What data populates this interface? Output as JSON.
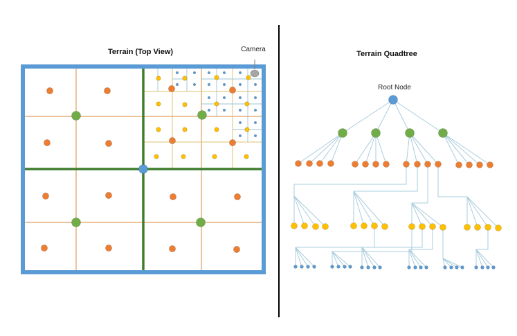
{
  "left": {
    "title": "Terrain (Top View)",
    "camera_label": "Camera"
  },
  "right": {
    "title": "Terrain Quadtree",
    "root_label": "Root Node"
  },
  "colors": {
    "border_blue": "#5B9BD5",
    "level1_line": "#3E7D2E",
    "level2_line": "#E0A060",
    "level3_line": "#E2C070",
    "level4_line": "#9DC3D6",
    "root_node": "#5B9BD5",
    "level1_node": "#70AD47",
    "level2_node": "#ED7D31",
    "level3_node": "#FFC000",
    "level4_node": "#5B9BD5",
    "camera": "#A6A6A6",
    "tree_edge": "#A9CCDC",
    "divider": "#000000"
  }
}
